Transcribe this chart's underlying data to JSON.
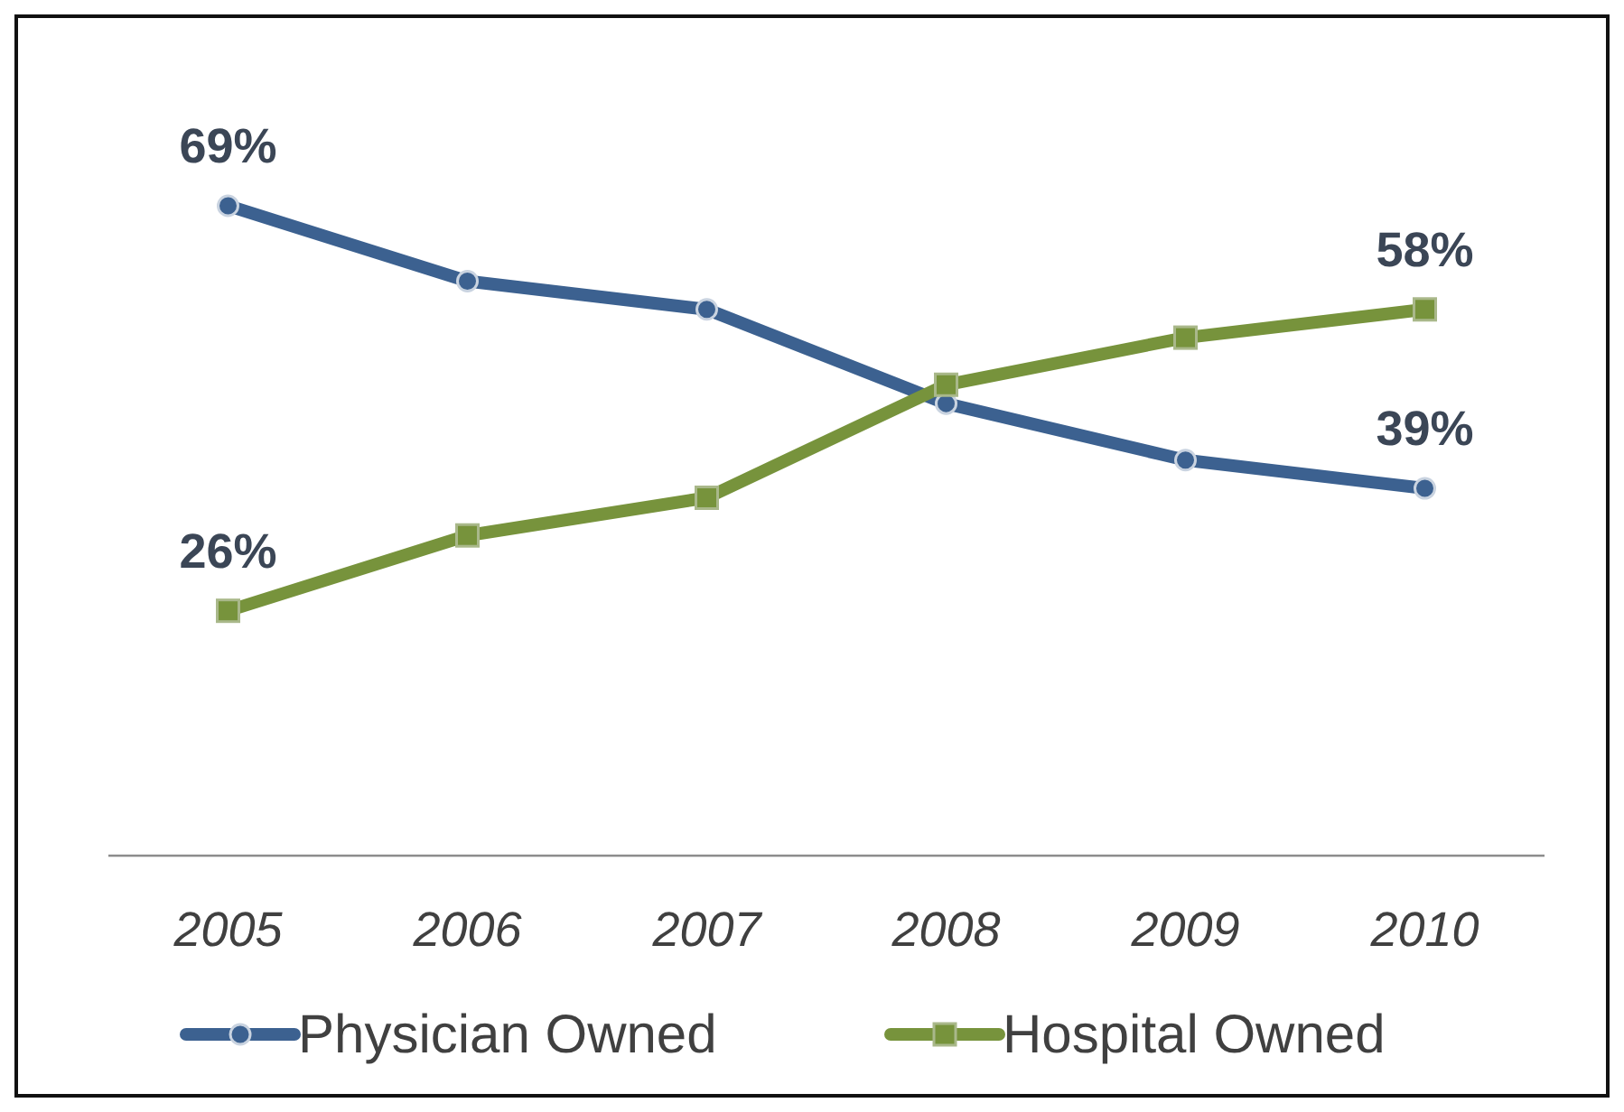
{
  "chart_data": {
    "type": "line",
    "categories": [
      "2005",
      "2006",
      "2007",
      "2008",
      "2009",
      "2010"
    ],
    "tick_labels": "x",
    "legend": "bottom",
    "line_style": "solid",
    "series": [
      {
        "name": "Physician Owned",
        "color": "#3c6190",
        "marker": "circle",
        "values": [
          69,
          61,
          58,
          48,
          42,
          39
        ],
        "value_labels": [
          "69%",
          null,
          null,
          null,
          null,
          "39%"
        ]
      },
      {
        "name": "Hospital Owned",
        "color": "#77933c",
        "marker": "square",
        "values": [
          26,
          34,
          38,
          50,
          55,
          58
        ],
        "value_labels": [
          "26%",
          null,
          null,
          null,
          null,
          "58%"
        ]
      }
    ]
  }
}
